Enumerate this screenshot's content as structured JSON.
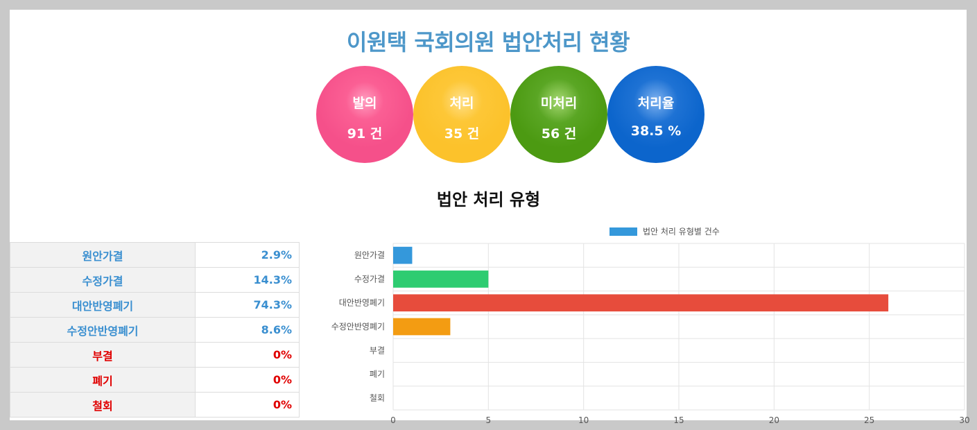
{
  "header": {
    "title": "이원택 국회의원 법안처리 현황"
  },
  "summary": [
    {
      "label": "발의",
      "value": "91 건"
    },
    {
      "label": "처리",
      "value": "35 건"
    },
    {
      "label": "미처리",
      "value": "56 건"
    },
    {
      "label": "처리율",
      "value": "38.5 %"
    }
  ],
  "section_title": "법안 처리 유형",
  "table": {
    "rows": [
      {
        "name": "원안가결",
        "value": "2.9%",
        "tone": "blue"
      },
      {
        "name": "수정가결",
        "value": "14.3%",
        "tone": "blue"
      },
      {
        "name": "대안반영폐기",
        "value": "74.3%",
        "tone": "blue"
      },
      {
        "name": "수정안반영폐기",
        "value": "8.6%",
        "tone": "blue"
      },
      {
        "name": "부결",
        "value": "0%",
        "tone": "red"
      },
      {
        "name": "폐기",
        "value": "0%",
        "tone": "red"
      },
      {
        "name": "철회",
        "value": "0%",
        "tone": "red"
      }
    ]
  },
  "chart_data": {
    "type": "bar",
    "orientation": "horizontal",
    "categories": [
      "원안가결",
      "수정가결",
      "대안반영폐기",
      "수정안반영폐기",
      "부결",
      "폐기",
      "철회"
    ],
    "series": [
      {
        "name": "법안 처리 유형별 건수",
        "values": [
          1,
          5,
          26,
          3,
          0,
          0,
          0
        ]
      }
    ],
    "bar_colors": [
      "#3498db",
      "#2ecc71",
      "#e74c3c",
      "#f39c12",
      "#9b59b6",
      "#95a5a6",
      "#34495e"
    ],
    "legend_color": "#3498db",
    "legend_position": "top-center",
    "xlim": [
      0,
      30
    ],
    "xticks": [
      0,
      5,
      10,
      15,
      20,
      25,
      30
    ],
    "grid": true
  }
}
